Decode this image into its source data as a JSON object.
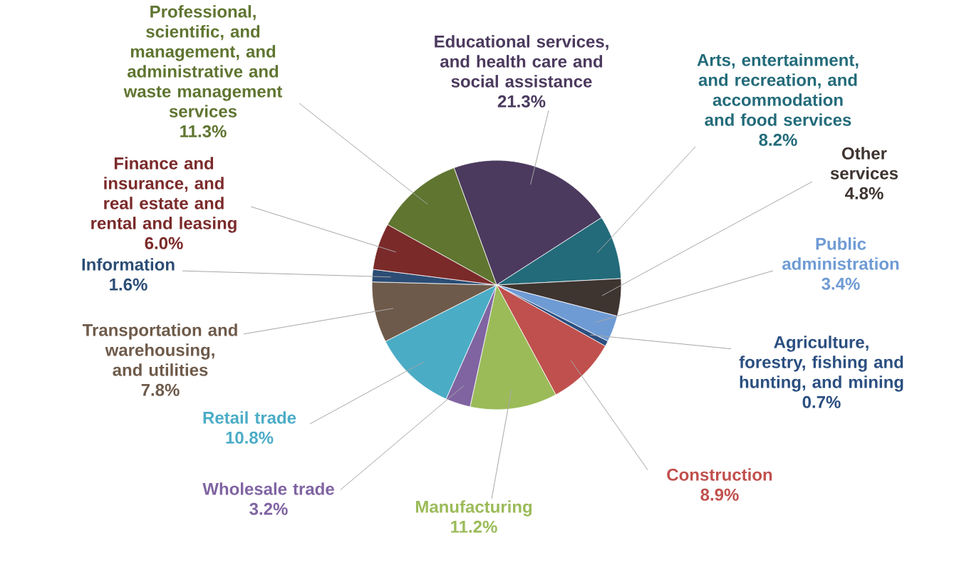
{
  "chart_data": {
    "type": "pie",
    "categories": [
      "Educational services, and health care and social assistance",
      "Arts, entertainment, and recreation, and accommodation and food services",
      "Other services",
      "Public administration",
      "Agriculture, forestry, fishing and hunting, and mining",
      "Construction",
      "Manufacturing",
      "Wholesale trade",
      "Retail trade",
      "Transportation and warehousing, and utilities",
      "Information",
      "Finance and insurance, and real estate and rental and leasing",
      "Professional, scientific, and management, and administrative and waste management services"
    ],
    "values": [
      21.3,
      8.2,
      4.8,
      3.4,
      0.7,
      8.9,
      11.2,
      3.2,
      10.8,
      7.8,
      1.6,
      6.0,
      11.3
    ],
    "value_labels": [
      "21.3%",
      "8.2%",
      "4.8%",
      "3.4%",
      "0.7%",
      "8.9%",
      "11.2%",
      "3.2%",
      "10.8%",
      "7.8%",
      "1.6%",
      "6.0%",
      "11.3%"
    ],
    "colors": [
      "#4b3a5e",
      "#236b7a",
      "#3e3430",
      "#6f9bd4",
      "#2b4f80",
      "#c0504d",
      "#9bbb59",
      "#8064a2",
      "#4bacc6",
      "#6e5a4a",
      "#2c4d75",
      "#7b2a2a",
      "#5f7530"
    ]
  }
}
